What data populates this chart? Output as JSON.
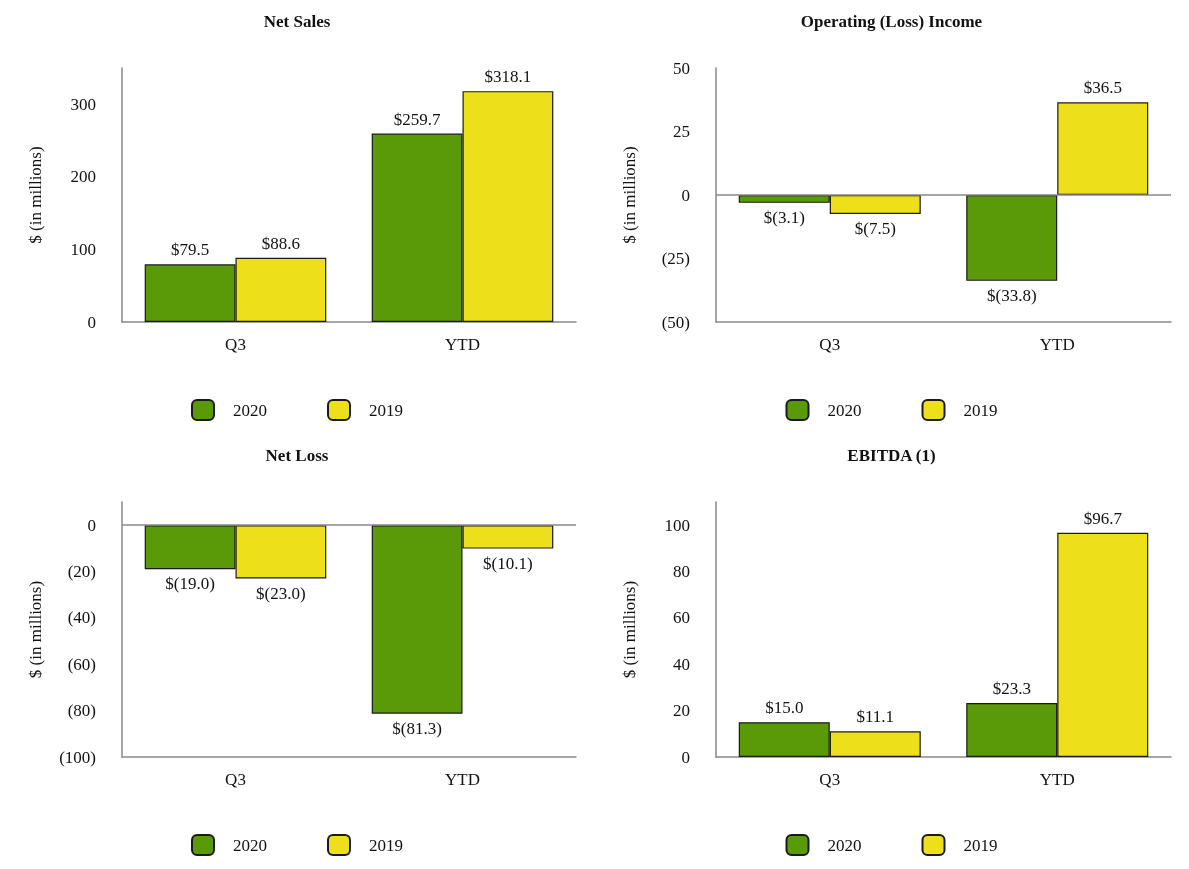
{
  "chart_data": [
    {
      "type": "bar",
      "title": "Net Sales",
      "ylabel": "$ (in millions)",
      "categories": [
        "Q3",
        "YTD"
      ],
      "series": [
        {
          "name": "2020",
          "color": "#5a9a08",
          "values": [
            79.5,
            259.7
          ],
          "value_labels": [
            "$79.5",
            "$259.7"
          ]
        },
        {
          "name": "2019",
          "color": "#ede01a",
          "values": [
            88.6,
            318.1
          ],
          "value_labels": [
            "$88.6",
            "$318.1"
          ]
        }
      ],
      "ylim": [
        0,
        350
      ],
      "yticks": [
        0,
        100,
        200,
        300
      ],
      "grid": false,
      "legend": "bottom"
    },
    {
      "type": "bar",
      "title": "Operating (Loss) Income",
      "ylabel": "$ (in millions)",
      "categories": [
        "Q3",
        "YTD"
      ],
      "series": [
        {
          "name": "2020",
          "color": "#5a9a08",
          "values": [
            -3.1,
            -33.8
          ],
          "value_labels": [
            "$(3.1)",
            "$(33.8)"
          ]
        },
        {
          "name": "2019",
          "color": "#ede01a",
          "values": [
            -7.5,
            36.5
          ],
          "value_labels": [
            "$(7.5)",
            "$36.5"
          ]
        }
      ],
      "ylim": [
        -50,
        50
      ],
      "yticks": [
        {
          "value": -50,
          "label": "(50)"
        },
        {
          "value": -25,
          "label": "(25)"
        },
        0,
        25,
        50
      ],
      "ref_lines": [
        {
          "axis": "y",
          "value": 0
        }
      ],
      "grid": false,
      "legend": "bottom"
    },
    {
      "type": "bar",
      "title": "Net Loss",
      "ylabel": "$ (in millions)",
      "categories": [
        "Q3",
        "YTD"
      ],
      "series": [
        {
          "name": "2020",
          "color": "#5a9a08",
          "values": [
            -19.0,
            -81.3
          ],
          "value_labels": [
            "$(19.0)",
            "$(81.3)"
          ]
        },
        {
          "name": "2019",
          "color": "#ede01a",
          "values": [
            -23.0,
            -10.1
          ],
          "value_labels": [
            "$(23.0)",
            "$(10.1)"
          ]
        }
      ],
      "ylim": [
        -100,
        10
      ],
      "yticks": [
        {
          "value": -100,
          "label": "(100)"
        },
        {
          "value": -80,
          "label": "(80)"
        },
        {
          "value": -60,
          "label": "(60)"
        },
        {
          "value": -40,
          "label": "(40)"
        },
        {
          "value": -20,
          "label": "(20)"
        },
        0
      ],
      "ref_lines": [
        {
          "axis": "y",
          "value": 0
        }
      ],
      "grid": false,
      "legend": "bottom"
    },
    {
      "type": "bar",
      "title": "EBITDA (1)",
      "ylabel": "$ (in millions)",
      "categories": [
        "Q3",
        "YTD"
      ],
      "series": [
        {
          "name": "2020",
          "color": "#5a9a08",
          "values": [
            15.0,
            23.3
          ],
          "value_labels": [
            "$15.0",
            "$23.3"
          ]
        },
        {
          "name": "2019",
          "color": "#ede01a",
          "values": [
            11.1,
            96.7
          ],
          "value_labels": [
            "$11.1",
            "$96.7"
          ]
        }
      ],
      "ylim": [
        0,
        110
      ],
      "yticks": [
        0,
        20,
        40,
        60,
        80,
        100
      ],
      "grid": false,
      "legend": "bottom"
    }
  ]
}
